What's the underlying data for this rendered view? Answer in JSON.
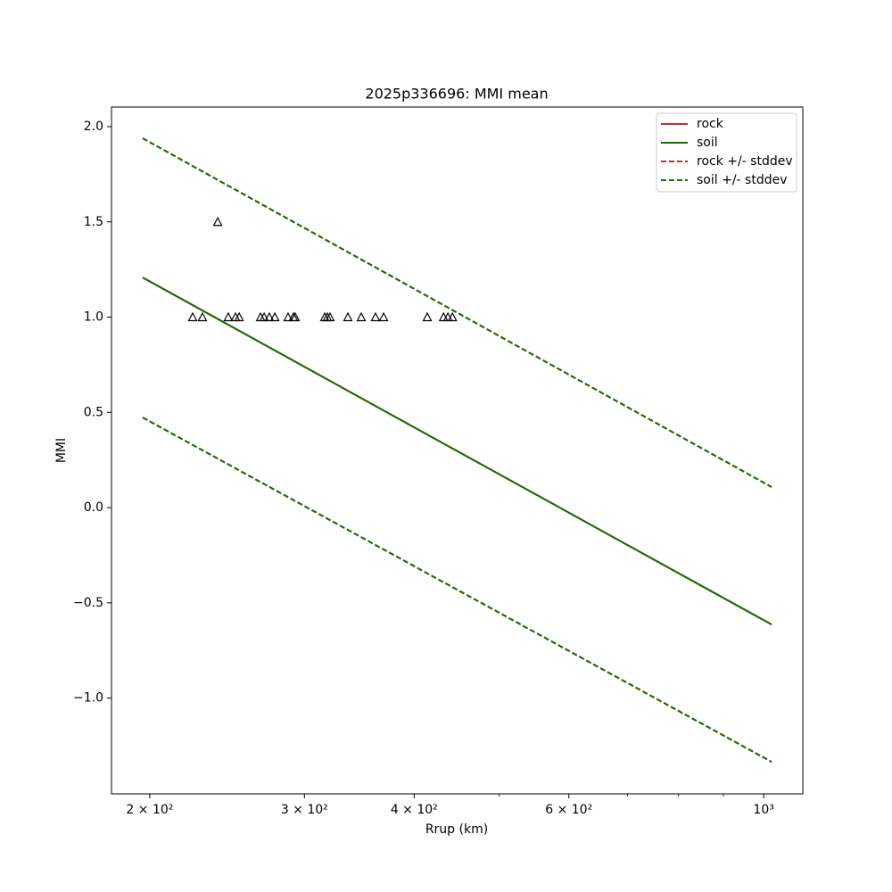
{
  "chart_data": {
    "type": "line",
    "title": "2025p336696: MMI mean",
    "x_label": "Rrup (km)",
    "y_label": "MMI",
    "x_log": true,
    "grid": false,
    "legend": "upper right",
    "xlim": [
      180.9,
      1108
    ],
    "ylim": [
      -1.503,
      2.103
    ],
    "xticks": [
      {
        "value": 200,
        "label": "2 × 10²"
      },
      {
        "value": 300,
        "label": "3 × 10²"
      },
      {
        "value": 400,
        "label": "4 × 10²"
      },
      {
        "value": 600,
        "label": "6 × 10²"
      },
      {
        "value": 1000,
        "label": "10³"
      }
    ],
    "xminorticks": [
      500,
      700,
      800,
      900
    ],
    "yticks": [
      {
        "value": -1.0,
        "label": "−1.0"
      },
      {
        "value": -0.5,
        "label": "−0.5"
      },
      {
        "value": 0.0,
        "label": "0.0"
      },
      {
        "value": 0.5,
        "label": "0.5"
      },
      {
        "value": 1.0,
        "label": "1.0"
      },
      {
        "value": 1.5,
        "label": "1.5"
      },
      {
        "value": 2.0,
        "label": "2.0"
      }
    ],
    "x": [
      196.3,
      1021
    ],
    "series": [
      {
        "name": "rock",
        "color": "#d62728",
        "dashed": false,
        "values": [
          1.208,
          -0.614
        ]
      },
      {
        "name": "soil",
        "color": "#1a6e00",
        "dashed": false,
        "values": [
          1.208,
          -0.614
        ]
      },
      {
        "name": "rock +/- stddev",
        "color": "#d62728",
        "dashed": true,
        "upper": [
          1.939,
          0.108
        ],
        "lower": [
          0.473,
          -1.335
        ]
      },
      {
        "name": "soil +/- stddev",
        "color": "#1a6e00",
        "dashed": true,
        "upper": [
          1.939,
          0.108
        ],
        "lower": [
          0.473,
          -1.335
        ]
      }
    ],
    "stations": {
      "color": "#000000",
      "x": [
        223.8,
        229.6,
        239,
        245.7,
        250.4,
        252.8,
        267.4,
        269.9,
        273.6,
        277.6,
        287.4,
        291.5,
        292.8,
        316.4,
        318.6,
        320.8,
        336.2,
        348.2,
        361.4,
        369.2,
        414,
        432,
        437,
        442.2
      ],
      "y": [
        1.0,
        1.0,
        1.5,
        1.0,
        1.0,
        1.0,
        1.0,
        1.0,
        1.0,
        1.0,
        1.0,
        1.0,
        1.0,
        1.0,
        1.0,
        1.0,
        1.0,
        1.0,
        1.0,
        1.0,
        1.0,
        1.0,
        1.0,
        1.0
      ]
    }
  }
}
